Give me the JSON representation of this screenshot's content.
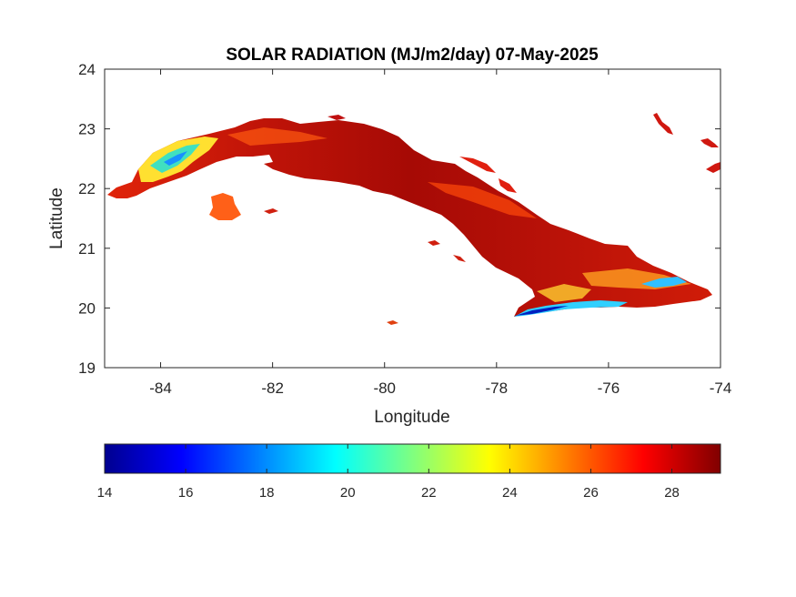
{
  "figure": {
    "title": "SOLAR RADIATION (MJ/m2/day) 07-May-2025"
  },
  "map": {
    "xlabel": "Longitude",
    "ylabel": "Latitude",
    "xlim": [
      -85,
      -74
    ],
    "ylim": [
      19,
      24
    ],
    "xticks": [
      -84,
      -82,
      -80,
      -78,
      -76,
      -74
    ],
    "yticks": [
      19,
      20,
      21,
      22,
      23,
      24
    ],
    "region": "Cuba",
    "field": "solar radiation",
    "units": "MJ/m2/day",
    "dominant_range": [
      26,
      29
    ],
    "low_areas": [
      {
        "area": "western tip (Pinar del Rio)",
        "approx_value": 20
      },
      {
        "area": "southeast coast (Sierra Maestra)",
        "approx_value": 16
      }
    ]
  },
  "colorbar": {
    "colormap": "jet",
    "min": 14,
    "max": 29.2,
    "ticks": [
      "14",
      "16",
      "18",
      "20",
      "22",
      "24",
      "26",
      "28"
    ],
    "tick_values": [
      14,
      16,
      18,
      20,
      22,
      24,
      26,
      28
    ],
    "stops": [
      "#00008F",
      "#0000FF",
      "#00FFFF",
      "#FFFF00",
      "#FF0000",
      "#800000"
    ]
  }
}
